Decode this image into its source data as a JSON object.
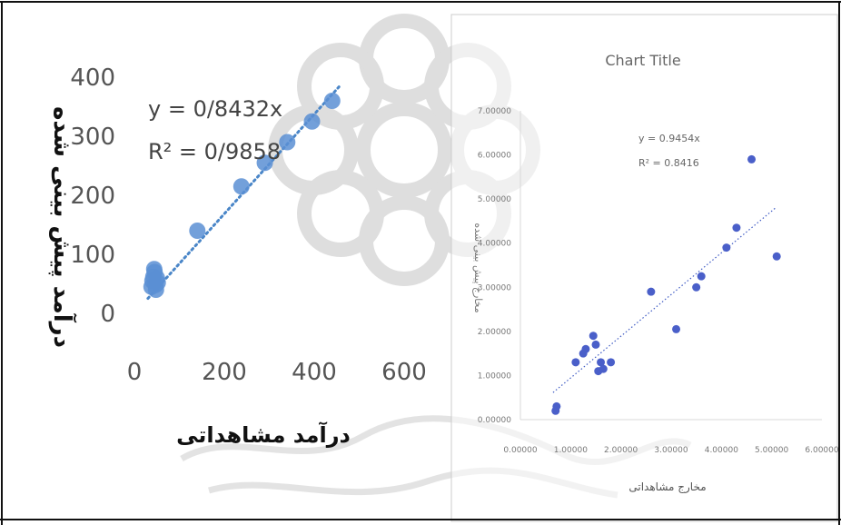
{
  "chart_data": [
    {
      "type": "scatter",
      "title": "",
      "xlabel": "درآمد مشاهداتی",
      "ylabel": "درآمد پیش بینی شده",
      "xlim": [
        0,
        600
      ],
      "ylim": [
        0,
        400
      ],
      "xticks": [
        "0",
        "200",
        "400",
        "600"
      ],
      "yticks": [
        "0",
        "100",
        "200",
        "300",
        "400"
      ],
      "equation": "y = 0/8432x",
      "r2": "R² = 0/9858",
      "trendline": {
        "slope": 0.8432,
        "style": "dotted"
      },
      "grid": false,
      "marker_color": "#5b8fd4",
      "x": [
        38,
        40,
        42,
        45,
        47,
        50,
        52,
        44,
        48,
        140,
        238,
        290,
        340,
        395,
        440
      ],
      "y": [
        45,
        55,
        62,
        70,
        48,
        60,
        52,
        75,
        40,
        140,
        215,
        255,
        290,
        325,
        360
      ]
    },
    {
      "type": "scatter",
      "title": "Chart Title",
      "xlabel": "مخارج مشاهداتی",
      "ylabel": "مخارج پیش بینی شده",
      "xlim": [
        0,
        6
      ],
      "ylim": [
        0,
        7
      ],
      "xticks": [
        "0.00000",
        "1.00000",
        "2.00000",
        "3.00000",
        "4.00000",
        "5.00000",
        "6.00000"
      ],
      "yticks": [
        "0.00000",
        "1.00000",
        "2.00000",
        "3.00000",
        "4.00000",
        "5.00000",
        "6.00000",
        "7.00000"
      ],
      "equation": "y = 0.9454x",
      "r2": "R² = 0.8416",
      "trendline": {
        "slope": 0.9454,
        "style": "dotted"
      },
      "grid": false,
      "marker_color": "#4a5fc9",
      "x": [
        0.7,
        0.72,
        1.1,
        1.25,
        1.3,
        1.45,
        1.5,
        1.55,
        1.6,
        1.65,
        1.8,
        2.6,
        3.1,
        3.5,
        3.6,
        4.1,
        4.3,
        4.6,
        5.1
      ],
      "y": [
        0.2,
        0.3,
        1.3,
        1.5,
        1.6,
        1.9,
        1.7,
        1.1,
        1.3,
        1.15,
        1.3,
        2.9,
        2.05,
        3.0,
        3.25,
        3.9,
        4.35,
        5.9,
        3.7
      ]
    }
  ]
}
